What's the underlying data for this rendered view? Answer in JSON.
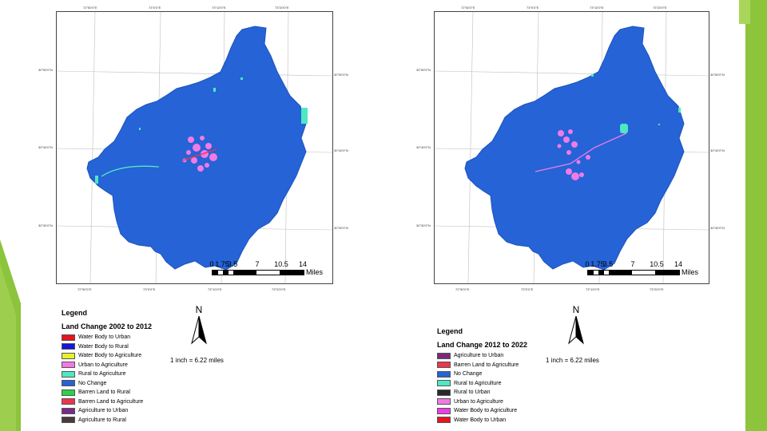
{
  "maps": [
    {
      "id": "left",
      "top_ticks": [
        "72°50'0\"E",
        "73°0'0\"E",
        "73°10'0\"E",
        "73°20'0\"E"
      ],
      "bottom_ticks": [
        "72°50'0\"E",
        "73°0'0\"E",
        "73°10'0\"E",
        "73°20'0\"E"
      ],
      "left_ticks": [
        "30°50'0\"N",
        "30°40'0\"N",
        "30°30'0\"N"
      ],
      "right_ticks": [
        "30°50'0\"N",
        "30°40'0\"N",
        "30°30'0\"N"
      ],
      "scale_numbers": [
        "0",
        "1.75",
        "3.5",
        "7",
        "10.5",
        "14"
      ],
      "scale_unit": "Miles",
      "north_label": "N",
      "scale_ratio": "1 inch = 6.22 miles",
      "legend": {
        "title": "Legend",
        "subtitle": "Land Change 2002 to 2012",
        "items": [
          {
            "label": "Water Body to Urban",
            "color": "#e8141e"
          },
          {
            "label": "Water Body to Rural",
            "color": "#1418d8"
          },
          {
            "label": "Water Body to Agriculture",
            "color": "#e6f02a"
          },
          {
            "label": "Urban to Agriculture",
            "color": "#f27ae6"
          },
          {
            "label": "Rural to Agriculture",
            "color": "#4ee8c4"
          },
          {
            "label": "No Change",
            "color": "#2563d6"
          },
          {
            "label": "Barren Land to Rural",
            "color": "#2bd14a"
          },
          {
            "label": "Barren Land to Agriculture",
            "color": "#ec3550"
          },
          {
            "label": "Agriculture to Urban",
            "color": "#7a2a8a"
          },
          {
            "label": "Agriculture to Rural",
            "color": "#4a3a3a"
          }
        ]
      }
    },
    {
      "id": "right",
      "top_ticks": [
        "72°50'0\"E",
        "73°0'0\"E",
        "73°10'0\"E",
        "73°20'0\"E"
      ],
      "bottom_ticks": [
        "72°50'0\"E",
        "73°0'0\"E",
        "73°10'0\"E",
        "73°20'0\"E"
      ],
      "left_ticks": [
        "30°50'0\"N",
        "30°40'0\"N",
        "30°30'0\"N"
      ],
      "right_ticks": [
        "30°50'0\"N",
        "30°40'0\"N",
        "30°30'0\"N"
      ],
      "scale_numbers": [
        "0",
        "1.75",
        "3.5",
        "7",
        "10.5",
        "14"
      ],
      "scale_unit": "Miles",
      "north_label": "N",
      "scale_ratio": "1 inch = 6.22 miles",
      "legend": {
        "title": "Legend",
        "subtitle": "Land Change 2012 to 2022",
        "items": [
          {
            "label": "Agriculture to Urban",
            "color": "#7a2a7a"
          },
          {
            "label": "Barren Land to Agriculture",
            "color": "#e63a4e"
          },
          {
            "label": "No Change",
            "color": "#2563d6"
          },
          {
            "label": "Rural to Agriculture",
            "color": "#4ee8c4"
          },
          {
            "label": "Rural to Urban",
            "color": "#2a2a2a"
          },
          {
            "label": "Urban to Agriculture",
            "color": "#f07ae8"
          },
          {
            "label": "Water Body to Agriculture",
            "color": "#ee3ee6"
          },
          {
            "label": "Water Body to Urban",
            "color": "#e8141e"
          }
        ]
      }
    }
  ]
}
